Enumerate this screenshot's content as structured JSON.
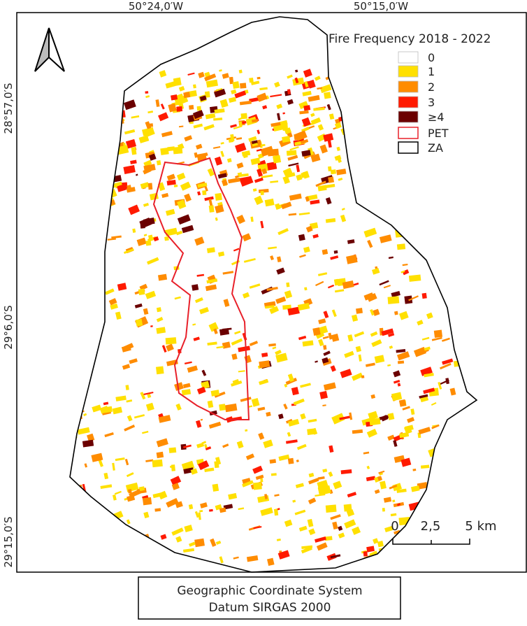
{
  "map": {
    "coordinates": {
      "top": [
        "50°24,0′W",
        "50°15,0′W"
      ],
      "left": [
        "28°57,0′S",
        "29°6,0′S",
        "29°15,0′S"
      ]
    },
    "legend": {
      "title": "Fire Frequency 2018 - 2022",
      "items": [
        {
          "label": "0",
          "color": "#ffffff"
        },
        {
          "label": "1",
          "color": "#ffe000"
        },
        {
          "label": "2",
          "color": "#ff8c00"
        },
        {
          "label": "3",
          "color": "#ff1a00"
        },
        {
          "label": "≥4",
          "color": "#6b0000"
        },
        {
          "label": "PET",
          "outline": "#e8202a"
        },
        {
          "label": "ZA",
          "outline": "#000000"
        }
      ]
    },
    "scale_bar": {
      "labels": [
        "0",
        "2,5",
        "5 km"
      ]
    }
  },
  "footer": {
    "lines": [
      "Geographic Coordinate System",
      "Datum SIRGAS 2000"
    ]
  }
}
